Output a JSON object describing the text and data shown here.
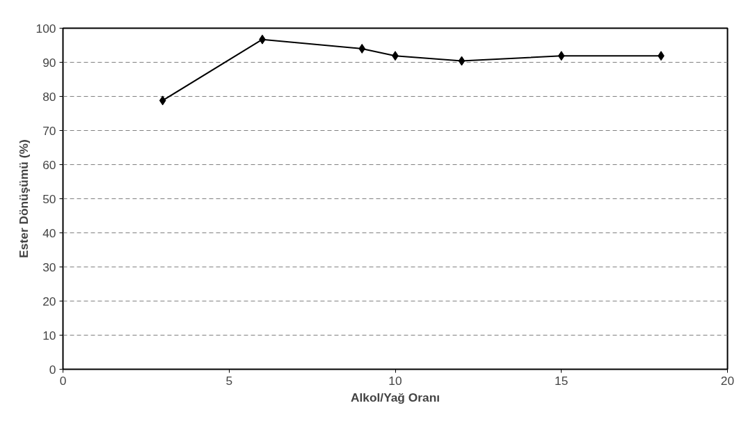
{
  "chart_data": {
    "type": "line",
    "xlabel": "Alkol/Yağ Oranı",
    "ylabel": "Ester Dönüşümü (%)",
    "x": [
      3,
      6,
      9,
      10,
      12,
      15,
      18
    ],
    "series": [
      {
        "color": "#000000",
        "values": [
          78.8,
          96.7,
          94.0,
          91.9,
          90.4,
          91.9,
          91.9
        ]
      }
    ],
    "xlim": [
      0,
      20
    ],
    "xticks": [
      0,
      5,
      10,
      15,
      20
    ],
    "ylim": [
      0,
      100
    ],
    "yticks": [
      0,
      10,
      20,
      30,
      40,
      50,
      60,
      70,
      80,
      90,
      100
    ],
    "grid": "y",
    "marker": "diamond",
    "line_style": "solid"
  }
}
